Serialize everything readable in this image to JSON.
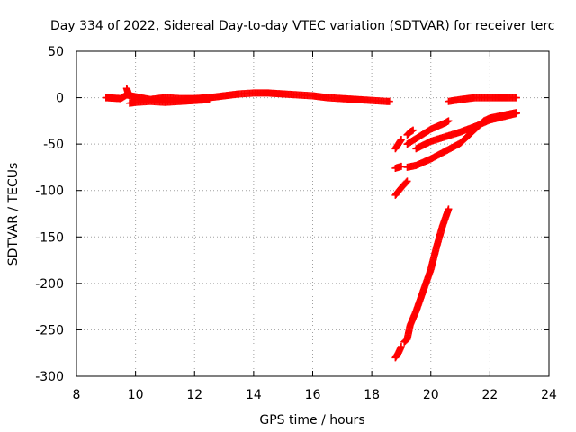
{
  "chart_data": {
    "type": "scatter",
    "title": "Day 334 of 2022, Sidereal Day-to-day VTEC variation (SDTVAR) for receiver terc",
    "xlabel": "GPS time / hours",
    "ylabel": "SDTVAR / TECUs",
    "xlim": [
      8,
      24
    ],
    "ylim": [
      -300,
      50
    ],
    "xticks": [
      "8",
      "10",
      "12",
      "14",
      "16",
      "18",
      "20",
      "22",
      "24"
    ],
    "yticks": [
      "50",
      "0",
      "-50",
      "-100",
      "-150",
      "-200",
      "-250",
      "-300"
    ],
    "grid": true,
    "marker": "+",
    "series_color": "#ff0000",
    "segments": [
      {
        "points": [
          [
            9.0,
            0
          ],
          [
            9.5,
            -1
          ],
          [
            9.7,
            3
          ],
          [
            10.0,
            1
          ],
          [
            10.5,
            -2
          ],
          [
            11.0,
            0
          ],
          [
            11.5,
            -1
          ],
          [
            12.0,
            -1
          ],
          [
            12.5,
            0
          ],
          [
            13.0,
            2
          ],
          [
            13.5,
            4
          ],
          [
            14.0,
            5
          ],
          [
            14.5,
            5
          ],
          [
            15.0,
            4
          ],
          [
            15.5,
            3
          ],
          [
            16.0,
            2
          ],
          [
            16.5,
            0
          ],
          [
            17.0,
            -1
          ],
          [
            17.5,
            -2
          ],
          [
            18.0,
            -3
          ],
          [
            18.5,
            -4
          ],
          [
            18.6,
            -4
          ]
        ]
      },
      {
        "points": [
          [
            9.7,
            10
          ],
          [
            9.75,
            5
          ],
          [
            9.8,
            2
          ]
        ]
      },
      {
        "points": [
          [
            9.8,
            -6
          ],
          [
            10.0,
            -5
          ],
          [
            10.5,
            -4
          ],
          [
            11.0,
            -5
          ],
          [
            11.5,
            -4
          ],
          [
            12.0,
            -3
          ],
          [
            12.5,
            -2
          ]
        ]
      },
      {
        "points": [
          [
            20.6,
            -4
          ],
          [
            21.0,
            -2
          ],
          [
            21.5,
            0
          ],
          [
            22.0,
            0
          ],
          [
            22.5,
            0
          ],
          [
            22.9,
            0
          ]
        ]
      },
      {
        "points": [
          [
            18.8,
            -55
          ],
          [
            18.9,
            -50
          ],
          [
            19.0,
            -45
          ]
        ]
      },
      {
        "points": [
          [
            19.2,
            -40
          ],
          [
            19.3,
            -37
          ],
          [
            19.4,
            -35
          ]
        ]
      },
      {
        "points": [
          [
            19.2,
            -50
          ],
          [
            19.5,
            -44
          ],
          [
            20.0,
            -34
          ],
          [
            20.5,
            -27
          ],
          [
            20.6,
            -25
          ]
        ]
      },
      {
        "points": [
          [
            19.5,
            -55
          ],
          [
            20.0,
            -47
          ],
          [
            21.0,
            -37
          ],
          [
            21.5,
            -31
          ],
          [
            22.0,
            -24
          ],
          [
            22.9,
            -17
          ]
        ]
      },
      {
        "points": [
          [
            19.2,
            -75
          ],
          [
            19.5,
            -73
          ],
          [
            20.0,
            -66
          ],
          [
            21.0,
            -49
          ],
          [
            21.8,
            -25
          ],
          [
            22.0,
            -22
          ],
          [
            22.9,
            -16
          ]
        ]
      },
      {
        "points": [
          [
            18.8,
            -76
          ],
          [
            19.0,
            -74
          ]
        ]
      },
      {
        "points": [
          [
            18.8,
            -105
          ],
          [
            19.0,
            -97
          ],
          [
            19.2,
            -90
          ]
        ]
      },
      {
        "points": [
          [
            18.8,
            -280
          ],
          [
            18.9,
            -275
          ],
          [
            19.0,
            -268
          ]
        ]
      },
      {
        "points": [
          [
            19.1,
            -263
          ],
          [
            19.2,
            -260
          ],
          [
            19.3,
            -245
          ],
          [
            19.5,
            -230
          ],
          [
            19.7,
            -212
          ],
          [
            20.0,
            -185
          ],
          [
            20.2,
            -160
          ],
          [
            20.4,
            -138
          ],
          [
            20.6,
            -120
          ]
        ]
      }
    ]
  }
}
